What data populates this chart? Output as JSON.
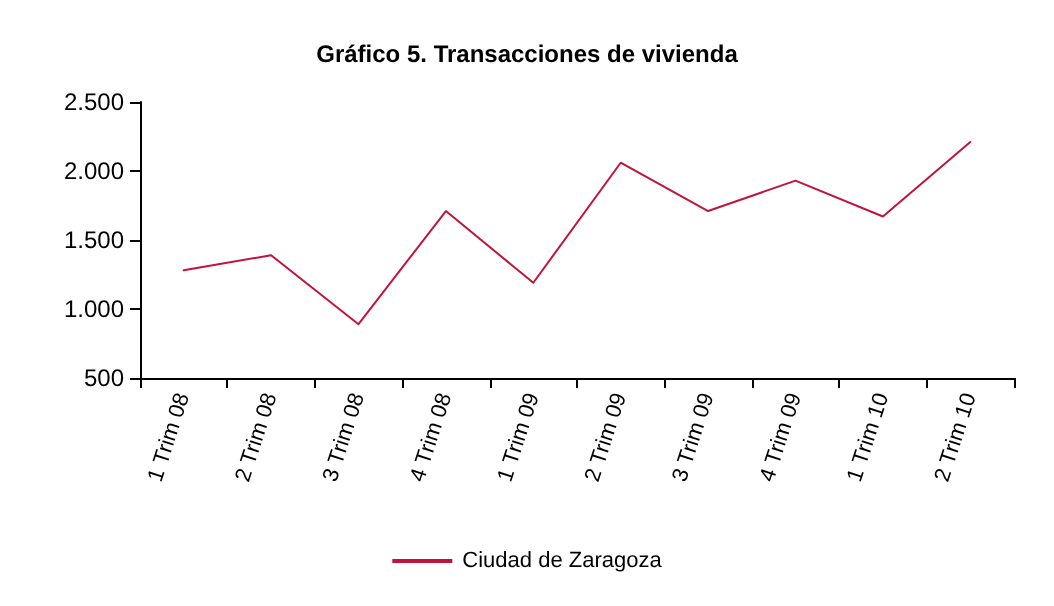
{
  "chart_data": {
    "type": "line",
    "title": "Gráfico 5. Transacciones de vivienda",
    "categories": [
      "1 Trim 08",
      "2 Trim 08",
      "3 Trim 08",
      "4 Trim 08",
      "1 Trim 09",
      "2 Trim 09",
      "3 Trim 09",
      "4 Trim 09",
      "1 Trim 10",
      "2 Trim 10"
    ],
    "series": [
      {
        "name": "Ciudad de Zaragoza",
        "color": "#c0143c",
        "values": [
          1280,
          1390,
          890,
          1710,
          1190,
          2060,
          1710,
          1930,
          1670,
          2210
        ]
      }
    ],
    "ylim": [
      500,
      2500
    ],
    "yticks": [
      {
        "value": 500,
        "label": "500"
      },
      {
        "value": 1000,
        "label": "1.000"
      },
      {
        "value": 1500,
        "label": "1.500"
      },
      {
        "value": 2000,
        "label": "2.000"
      },
      {
        "value": 2500,
        "label": "2.500"
      }
    ],
    "grid": false,
    "legend": "bottom",
    "marker": "none"
  }
}
